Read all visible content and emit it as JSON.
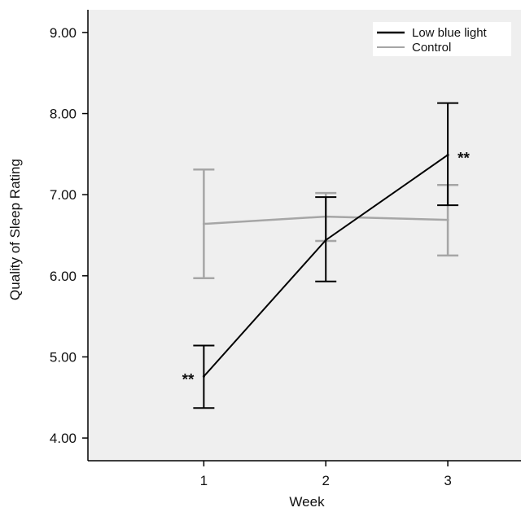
{
  "chart_data": {
    "type": "line",
    "xlabel": "Week",
    "ylabel": "Quality of Sleep Rating",
    "categories": [
      "1",
      "2",
      "3"
    ],
    "x": [
      1,
      2,
      3
    ],
    "xlim": [
      0.05,
      3.6
    ],
    "ylim": [
      3.72,
      9.28
    ],
    "y_ticks": [
      "4.00",
      "5.00",
      "6.00",
      "7.00",
      "8.00",
      "9.00"
    ],
    "y_tick_values": [
      4,
      5,
      6,
      7,
      8,
      9
    ],
    "grid": false,
    "legend_position": "top-right",
    "background_color": "#efefef",
    "series": [
      {
        "name": "Low blue light",
        "color": "#000000",
        "values": [
          4.76,
          6.44,
          7.49
        ],
        "error_low": [
          4.37,
          5.93,
          6.87
        ],
        "error_high": [
          5.14,
          6.97,
          8.13
        ]
      },
      {
        "name": "Control",
        "color": "#a6a6a6",
        "values": [
          6.64,
          6.73,
          6.69
        ],
        "error_low": [
          5.97,
          6.43,
          6.25
        ],
        "error_high": [
          7.31,
          7.02,
          7.12
        ]
      }
    ],
    "annotations": [
      {
        "text": "**",
        "x": 1,
        "y": 4.76,
        "side": "left"
      },
      {
        "text": "**",
        "x": 3,
        "y": 7.49,
        "side": "right"
      }
    ]
  }
}
